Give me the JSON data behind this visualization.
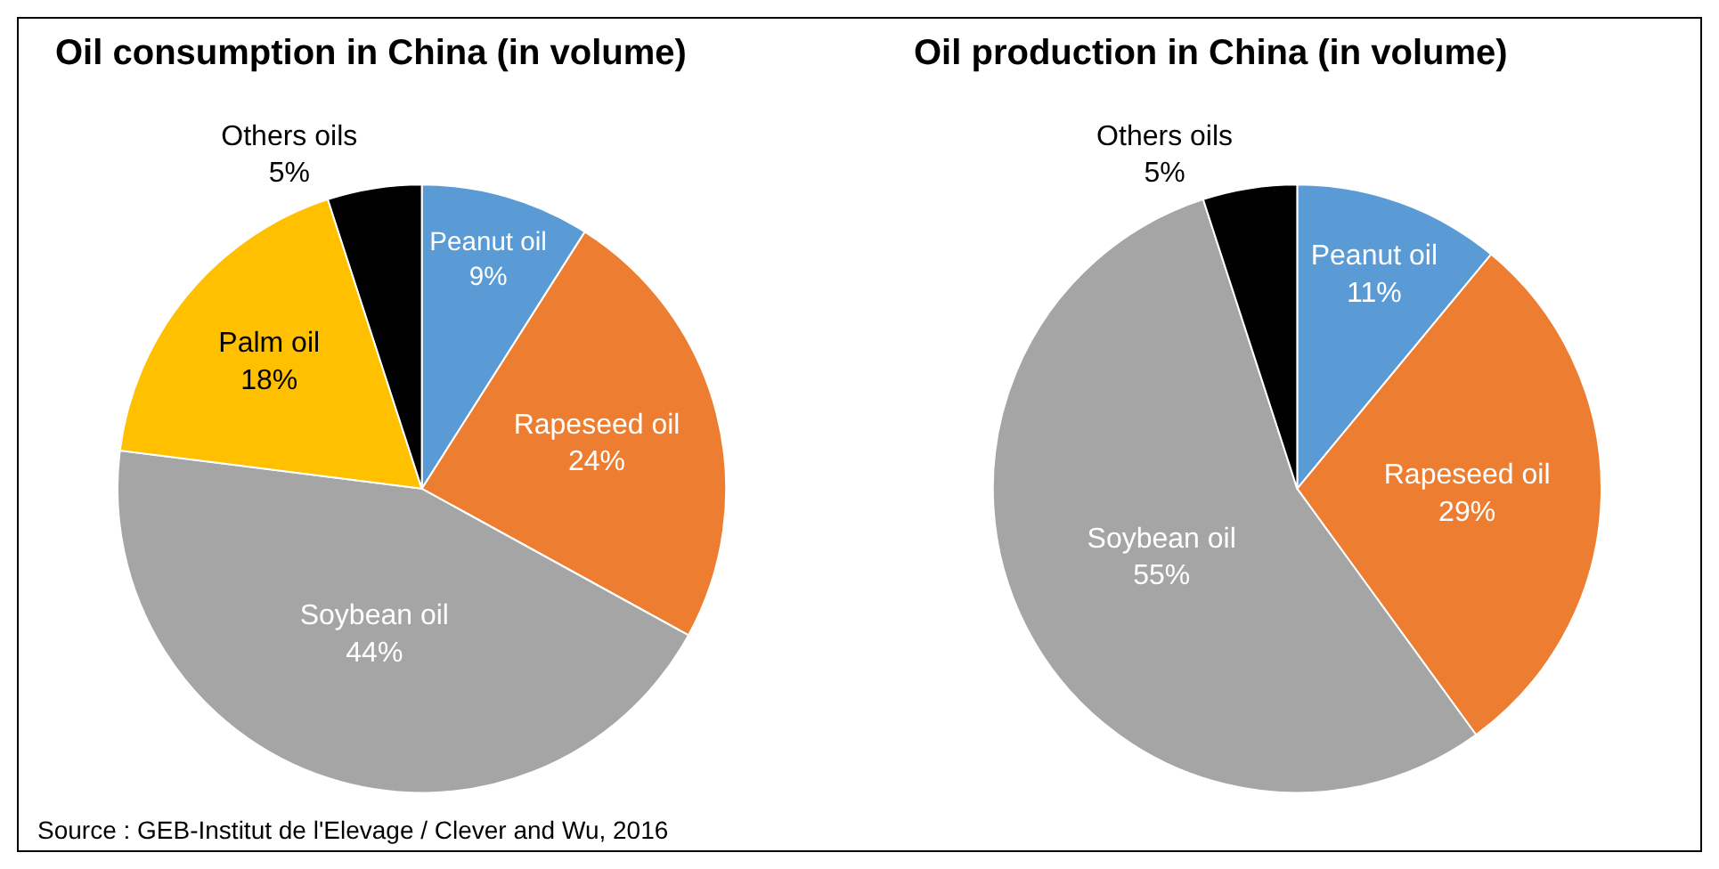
{
  "chart_data": [
    {
      "type": "pie",
      "title": "Oil consumption in China (in volume)",
      "categories": [
        "Peanut oil",
        "Rapeseed oil",
        "Soybean oil",
        "Palm oil",
        "Others oils"
      ],
      "values": [
        9,
        24,
        44,
        18,
        5
      ],
      "value_labels": [
        "9%",
        "24%",
        "44%",
        "18%",
        "5%"
      ],
      "colors": [
        "#5b9bd5",
        "#ed7d31",
        "#a5a5a5",
        "#ffc000",
        "#000000"
      ],
      "annotations": [
        "Source : GEB-Institut de l'Elevage / Clever and Wu, 2016"
      ]
    },
    {
      "type": "pie",
      "title": "Oil production in China (in volume)",
      "categories": [
        "Peanut oil",
        "Rapeseed oil",
        "Soybean oil",
        "Others oils"
      ],
      "values": [
        11,
        29,
        55,
        5
      ],
      "value_labels": [
        "11%",
        "29%",
        "55%",
        "5%"
      ],
      "colors": [
        "#5b9bd5",
        "#ed7d31",
        "#a5a5a5",
        "#000000"
      ]
    }
  ]
}
